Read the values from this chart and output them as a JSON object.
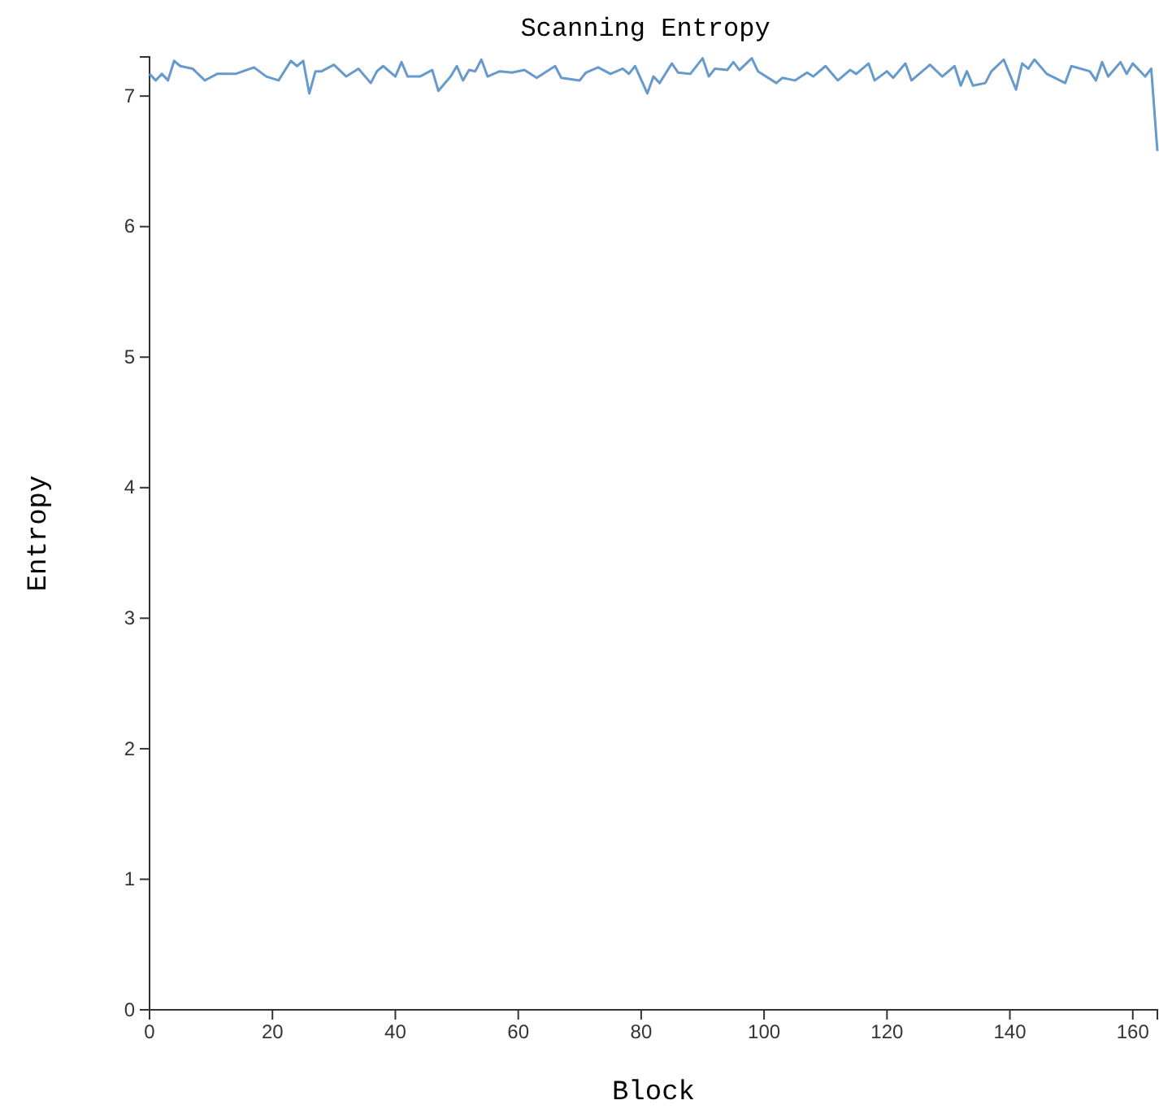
{
  "chart_data": {
    "type": "line",
    "title": "Scanning Entropy",
    "xlabel": "Block",
    "ylabel": "Entropy",
    "x": [
      0,
      1,
      2,
      3,
      4,
      5,
      7,
      9,
      11,
      14,
      17,
      19,
      21,
      23,
      24,
      25,
      26,
      27,
      28,
      30,
      32,
      34,
      36,
      37,
      38,
      40,
      41,
      42,
      44,
      46,
      47,
      49,
      50,
      51,
      52,
      53,
      54,
      55,
      57,
      59,
      61,
      63,
      66,
      67,
      70,
      71,
      73,
      75,
      77,
      78,
      79,
      81,
      82,
      83,
      85,
      86,
      88,
      90,
      91,
      92,
      94,
      95,
      96,
      98,
      99,
      102,
      103,
      105,
      107,
      108,
      110,
      112,
      114,
      115,
      117,
      118,
      120,
      121,
      123,
      124,
      127,
      129,
      131,
      132,
      133,
      134,
      136,
      137,
      139,
      141,
      142,
      143,
      144,
      146,
      149,
      150,
      153,
      154,
      155,
      156,
      158,
      159,
      160,
      162,
      163,
      164
    ],
    "series": [
      {
        "color": "#6699cc",
        "values": [
          7.17,
          7.12,
          7.17,
          7.12,
          7.27,
          7.23,
          7.21,
          7.12,
          7.17,
          7.17,
          7.22,
          7.15,
          7.12,
          7.27,
          7.23,
          7.27,
          7.02,
          7.19,
          7.19,
          7.24,
          7.15,
          7.21,
          7.1,
          7.19,
          7.23,
          7.15,
          7.26,
          7.15,
          7.15,
          7.2,
          7.04,
          7.15,
          7.23,
          7.12,
          7.2,
          7.19,
          7.28,
          7.15,
          7.19,
          7.18,
          7.2,
          7.14,
          7.23,
          7.14,
          7.12,
          7.18,
          7.22,
          7.17,
          7.21,
          7.17,
          7.23,
          7.02,
          7.15,
          7.1,
          7.25,
          7.18,
          7.17,
          7.29,
          7.15,
          7.21,
          7.2,
          7.26,
          7.2,
          7.29,
          7.19,
          7.1,
          7.14,
          7.12,
          7.18,
          7.15,
          7.23,
          7.12,
          7.2,
          7.17,
          7.25,
          7.12,
          7.19,
          7.14,
          7.25,
          7.12,
          7.24,
          7.15,
          7.23,
          7.08,
          7.19,
          7.08,
          7.1,
          7.19,
          7.28,
          7.05,
          7.25,
          7.21,
          7.28,
          7.17,
          7.1,
          7.23,
          7.19,
          7.12,
          7.26,
          7.15,
          7.26,
          7.17,
          7.25,
          7.15,
          7.21,
          6.58
        ]
      }
    ],
    "xlim": [
      0,
      164
    ],
    "xticks": [
      0,
      20,
      40,
      60,
      80,
      100,
      120,
      140,
      160
    ],
    "ylim": [
      0,
      7.3
    ],
    "yticks": [
      0,
      1,
      2,
      3,
      4,
      5,
      6,
      7
    ],
    "grid": false,
    "marker": "none",
    "line_style": "solid"
  }
}
